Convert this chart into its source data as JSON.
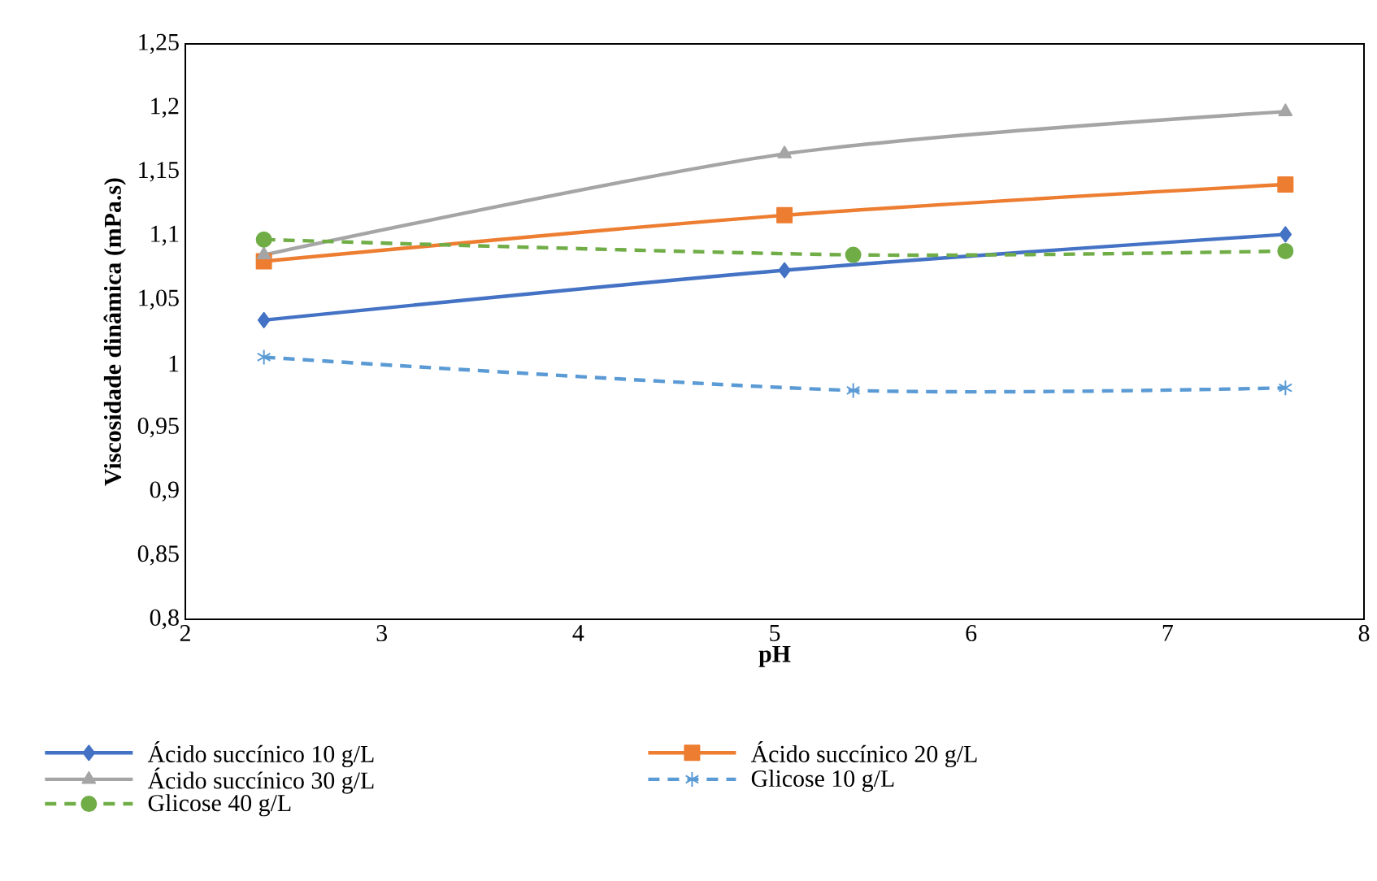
{
  "chart_data": {
    "type": "line",
    "xlabel": "pH",
    "ylabel": "Viscosidade dinâmica (mPa.s)",
    "xlim": [
      2,
      8
    ],
    "xticks": [
      2,
      3,
      4,
      5,
      6,
      7,
      8
    ],
    "ylim": [
      0.8,
      1.25
    ],
    "yticks": [
      {
        "value": 0.8,
        "label": "0,8"
      },
      {
        "value": 0.85,
        "label": "0,85"
      },
      {
        "value": 0.9,
        "label": "0,9"
      },
      {
        "value": 0.95,
        "label": "0,95"
      },
      {
        "value": 1,
        "label": "1"
      },
      {
        "value": 1.05,
        "label": "1,05"
      },
      {
        "value": 1.1,
        "label": "1,1"
      },
      {
        "value": 1.15,
        "label": "1,15"
      },
      {
        "value": 1.2,
        "label": "1,2"
      },
      {
        "value": 1.25,
        "label": "1,25"
      }
    ],
    "grid": false,
    "legend": "bottom",
    "series": [
      {
        "name": "Ácido succínico 10 g/L",
        "color": "#4472c4",
        "marker": "diamond",
        "line_style": "solid",
        "x": [
          2.4,
          5.05,
          7.6
        ],
        "values": [
          1.034,
          1.073,
          1.101
        ]
      },
      {
        "name": "Ácido succínico 20 g/L",
        "color": "#ed7d31",
        "marker": "square",
        "line_style": "solid",
        "x": [
          2.4,
          5.05,
          7.6
        ],
        "values": [
          1.08,
          1.116,
          1.14
        ]
      },
      {
        "name": "Ácido succínico 30 g/L",
        "color": "#a5a5a5",
        "marker": "triangle",
        "line_style": "solid",
        "x": [
          2.4,
          5.05,
          7.6
        ],
        "values": [
          1.085,
          1.164,
          1.197
        ]
      },
      {
        "name": "Glicose 10 g/L",
        "color": "#5b9bd5",
        "marker": "cross",
        "line_style": "dashed",
        "x": [
          2.4,
          5.4,
          7.6
        ],
        "values": [
          1.005,
          0.979,
          0.981
        ]
      },
      {
        "name": "Glicose 40 g/L",
        "color": "#70ad47",
        "marker": "circle",
        "line_style": "dashed",
        "x": [
          2.4,
          5.4,
          7.6
        ],
        "values": [
          1.097,
          1.085,
          1.088
        ]
      }
    ]
  }
}
